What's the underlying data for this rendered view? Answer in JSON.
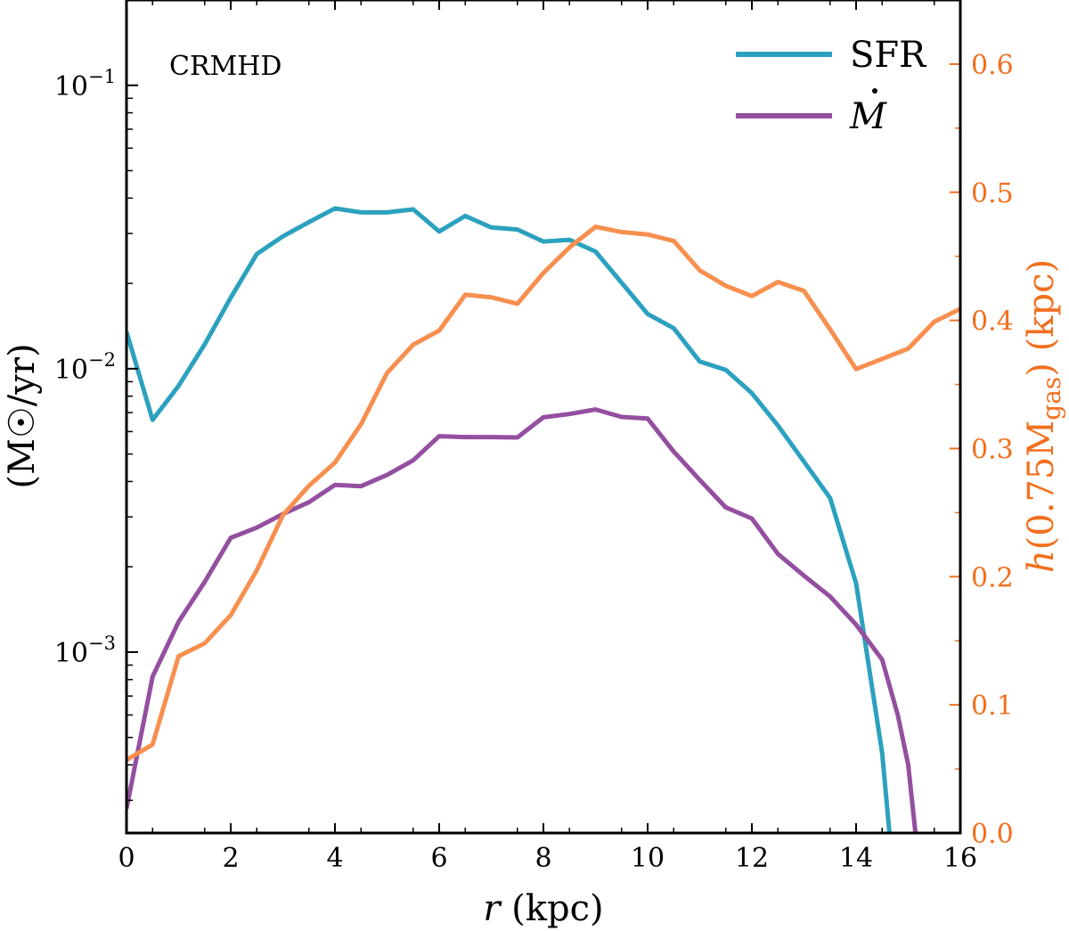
{
  "chart_data": {
    "type": "line",
    "annotation": "CRMHD",
    "colors": {
      "sfr": "#2ca1bf",
      "mdot": "#944fa0",
      "height": "#f78f4f",
      "right_axis": "#f26f1e"
    },
    "x": {
      "label_var": "r",
      "label_unit": "(kpc)",
      "lim": [
        0,
        16
      ],
      "ticks": [
        0,
        2,
        4,
        6,
        8,
        10,
        12,
        14,
        16
      ],
      "tick_labels": [
        "0",
        "2",
        "4",
        "6",
        "8",
        "10",
        "12",
        "14",
        "16"
      ]
    },
    "y_left": {
      "label": "(M☉/yr)",
      "scale": "log",
      "lim": [
        0.00023,
        0.2
      ],
      "major_ticks": [
        0.001,
        0.01,
        0.1
      ],
      "tick_labels": [
        {
          "base": "10",
          "exp": "−3"
        },
        {
          "base": "10",
          "exp": "−2"
        },
        {
          "base": "10",
          "exp": "−1"
        }
      ]
    },
    "y_right": {
      "label_var": "h",
      "label_arg": "(0.75M",
      "label_sub": "gas",
      "label_close": ")",
      "label_unit": "(kpc)",
      "scale": "linear",
      "lim": [
        0.0,
        0.65
      ],
      "ticks": [
        0.0,
        0.1,
        0.2,
        0.3,
        0.4,
        0.5,
        0.6
      ],
      "tick_labels": [
        "0.0",
        "0.1",
        "0.2",
        "0.3",
        "0.4",
        "0.5",
        "0.6"
      ]
    },
    "legend": {
      "position": "top-right",
      "entries": [
        {
          "key": "sfr",
          "label": "SFR"
        },
        {
          "key": "mdot",
          "label": "M"
        }
      ]
    },
    "series": [
      {
        "key": "sfr",
        "name": "SFR",
        "axis": "left",
        "points": [
          [
            0,
            0.0135
          ],
          [
            0.5,
            0.0066
          ],
          [
            1,
            0.0087
          ],
          [
            1.5,
            0.0122
          ],
          [
            2,
            0.0178
          ],
          [
            2.5,
            0.0254
          ],
          [
            3,
            0.0293
          ],
          [
            3.5,
            0.0329
          ],
          [
            4,
            0.0368
          ],
          [
            4.5,
            0.0356
          ],
          [
            5,
            0.0356
          ],
          [
            5.5,
            0.0365
          ],
          [
            6,
            0.0305
          ],
          [
            6.5,
            0.0346
          ],
          [
            7,
            0.0315
          ],
          [
            7.5,
            0.031
          ],
          [
            8,
            0.0281
          ],
          [
            8.5,
            0.0285
          ],
          [
            9,
            0.0259
          ],
          [
            9.5,
            0.0201
          ],
          [
            10,
            0.0156
          ],
          [
            10.5,
            0.0139
          ],
          [
            11,
            0.0106
          ],
          [
            11.5,
            0.0099
          ],
          [
            12,
            0.0082
          ],
          [
            12.5,
            0.0063
          ],
          [
            13,
            0.0047
          ],
          [
            13.5,
            0.0035
          ],
          [
            14,
            0.00175
          ],
          [
            14.5,
            0.00044
          ],
          [
            14.65,
            0.00022
          ]
        ]
      },
      {
        "key": "mdot",
        "name": "M",
        "axis": "left",
        "points": [
          [
            0,
            0.00028
          ],
          [
            0.5,
            0.00082
          ],
          [
            1,
            0.00128
          ],
          [
            1.5,
            0.00177
          ],
          [
            2,
            0.00253
          ],
          [
            2.5,
            0.00275
          ],
          [
            3,
            0.00307
          ],
          [
            3.5,
            0.00338
          ],
          [
            4,
            0.00389
          ],
          [
            4.5,
            0.00385
          ],
          [
            5,
            0.00422
          ],
          [
            5.5,
            0.00475
          ],
          [
            6,
            0.00578
          ],
          [
            6.5,
            0.00574
          ],
          [
            7,
            0.00574
          ],
          [
            7.5,
            0.00572
          ],
          [
            8,
            0.00674
          ],
          [
            8.5,
            0.00692
          ],
          [
            9,
            0.00718
          ],
          [
            9.5,
            0.00676
          ],
          [
            10,
            0.00667
          ],
          [
            10.5,
            0.0051
          ],
          [
            11,
            0.00405
          ],
          [
            11.5,
            0.00324
          ],
          [
            12,
            0.00296
          ],
          [
            12.5,
            0.00222
          ],
          [
            13,
            0.00186
          ],
          [
            13.5,
            0.00157
          ],
          [
            14,
            0.00125
          ],
          [
            14.5,
            0.00094
          ],
          [
            14.8,
            0.0006
          ],
          [
            15,
            0.0004
          ],
          [
            15.15,
            0.00022
          ]
        ]
      },
      {
        "key": "height",
        "name": "h(0.75Mgas)",
        "axis": "right",
        "points": [
          [
            0,
            0.057
          ],
          [
            0.5,
            0.069
          ],
          [
            1,
            0.138
          ],
          [
            1.5,
            0.148
          ],
          [
            2,
            0.17
          ],
          [
            2.5,
            0.205
          ],
          [
            3,
            0.248
          ],
          [
            3.5,
            0.271
          ],
          [
            4,
            0.289
          ],
          [
            4.5,
            0.319
          ],
          [
            5,
            0.359
          ],
          [
            5.5,
            0.381
          ],
          [
            6,
            0.392
          ],
          [
            6.5,
            0.42
          ],
          [
            7,
            0.418
          ],
          [
            7.5,
            0.413
          ],
          [
            8,
            0.437
          ],
          [
            8.5,
            0.457
          ],
          [
            9,
            0.473
          ],
          [
            9.5,
            0.469
          ],
          [
            10,
            0.467
          ],
          [
            10.5,
            0.462
          ],
          [
            11,
            0.439
          ],
          [
            11.5,
            0.427
          ],
          [
            12,
            0.419
          ],
          [
            12.5,
            0.43
          ],
          [
            13,
            0.423
          ],
          [
            13.5,
            0.393
          ],
          [
            14,
            0.362
          ],
          [
            14.5,
            0.37
          ],
          [
            15,
            0.378
          ],
          [
            15.5,
            0.399
          ],
          [
            16,
            0.409
          ]
        ]
      }
    ]
  }
}
